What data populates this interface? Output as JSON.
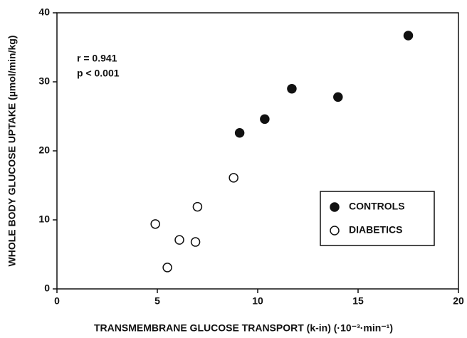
{
  "chart_data": {
    "type": "scatter",
    "xlabel": "TRANSMEMBRANE GLUCOSE TRANSPORT (k-in) (·10⁻³·min⁻¹)",
    "ylabel": "WHOLE BODY GLUCOSE UPTAKE (µmol/min/kg)",
    "annotations": [
      "r = 0.941",
      "p < 0.001"
    ],
    "xlim": [
      0,
      20
    ],
    "xticks": [
      0,
      5,
      10,
      15,
      20
    ],
    "ylim": [
      0,
      40
    ],
    "yticks": [
      0,
      10,
      20,
      30,
      40
    ],
    "legend": "lower right",
    "series": [
      {
        "name": "CONTROLS",
        "color": "#111111",
        "x": [
          9.1,
          10.35,
          11.7,
          14.0,
          17.5
        ],
        "values": [
          22.6,
          24.6,
          29.0,
          27.8,
          36.7
        ]
      },
      {
        "name": "DIABETICS",
        "color": "#ffffff",
        "x": [
          4.9,
          5.5,
          6.1,
          6.9,
          7.0,
          8.8
        ],
        "values": [
          9.4,
          3.1,
          7.1,
          6.8,
          11.9,
          16.1
        ]
      }
    ]
  }
}
